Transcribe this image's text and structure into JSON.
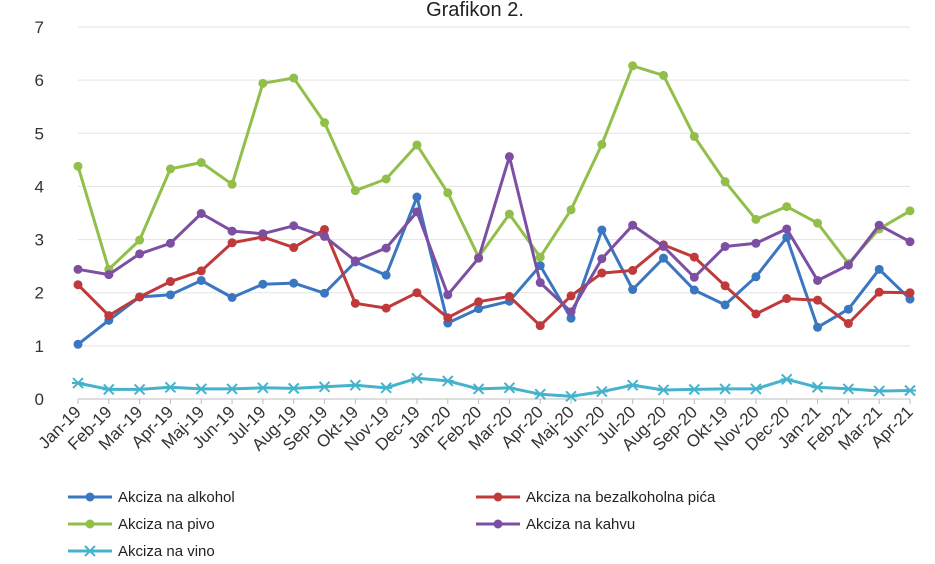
{
  "chart_data": {
    "type": "line",
    "title": "Grafikon 2.",
    "xlabel": "",
    "ylabel": "",
    "ylim": [
      0,
      7
    ],
    "yticks": [
      "0",
      "1",
      "2",
      "3",
      "4",
      "5",
      "6",
      "7"
    ],
    "grid": "horizontal",
    "legend_position": "bottom",
    "categories": [
      "Jan-19",
      "Feb-19",
      "Mar-19",
      "Apr-19",
      "Maj-19",
      "Jun-19",
      "Jul-19",
      "Aug-19",
      "Sep-19",
      "Okt-19",
      "Nov-19",
      "Dec-19",
      "Jan-20",
      "Feb-20",
      "Mar-20",
      "Apr-20",
      "Maj-20",
      "Jun-20",
      "Jul-20",
      "Aug-20",
      "Sep-20",
      "Okt-19",
      "Nov-20",
      "Dec-20",
      "Jan-21",
      "Feb-21",
      "Mar-21",
      "Apr-21"
    ],
    "series": [
      {
        "name": "Akciza na alkohol",
        "color": "#3a77c0",
        "marker": "circle",
        "values": [
          1.03,
          1.48,
          1.92,
          1.96,
          2.23,
          1.91,
          2.16,
          2.18,
          1.99,
          2.58,
          2.33,
          3.8,
          1.43,
          1.7,
          1.84,
          2.51,
          1.52,
          3.18,
          2.06,
          2.65,
          2.05,
          1.77,
          2.3,
          3.04,
          1.35,
          1.69,
          2.44,
          1.88
        ]
      },
      {
        "name": "Akciza na bezalkoholna pića",
        "color": "#c0393b",
        "marker": "circle",
        "values": [
          2.15,
          1.57,
          1.92,
          2.21,
          2.41,
          2.94,
          3.05,
          2.85,
          3.19,
          1.8,
          1.71,
          2.0,
          1.53,
          1.83,
          1.93,
          1.38,
          1.94,
          2.37,
          2.42,
          2.9,
          2.67,
          2.13,
          1.6,
          1.89,
          1.86,
          1.42,
          2.01,
          2.0
        ]
      },
      {
        "name": "Akciza na pivo",
        "color": "#92bf4a",
        "marker": "circle",
        "values": [
          4.38,
          2.44,
          2.99,
          4.33,
          4.45,
          4.04,
          5.94,
          6.04,
          5.2,
          3.92,
          4.14,
          4.78,
          3.88,
          2.67,
          3.48,
          2.67,
          3.56,
          4.79,
          6.27,
          6.09,
          4.94,
          4.09,
          3.38,
          3.62,
          3.31,
          2.55,
          3.2,
          3.54
        ]
      },
      {
        "name": "Akciza na kahvu",
        "color": "#7d4fa3",
        "marker": "circle",
        "values": [
          2.44,
          2.34,
          2.73,
          2.93,
          3.49,
          3.16,
          3.11,
          3.26,
          3.06,
          2.6,
          2.84,
          3.52,
          1.96,
          2.65,
          4.56,
          2.19,
          1.64,
          2.64,
          3.27,
          2.87,
          2.29,
          2.87,
          2.93,
          3.2,
          2.23,
          2.52,
          3.27,
          2.96
        ]
      },
      {
        "name": "Akciza na vino",
        "color": "#46b3cc",
        "marker": "star",
        "values": [
          0.3,
          0.18,
          0.18,
          0.22,
          0.19,
          0.19,
          0.21,
          0.2,
          0.23,
          0.26,
          0.21,
          0.39,
          0.34,
          0.19,
          0.21,
          0.09,
          0.05,
          0.14,
          0.26,
          0.17,
          0.18,
          0.19,
          0.19,
          0.37,
          0.22,
          0.19,
          0.15,
          0.16
        ]
      }
    ]
  }
}
